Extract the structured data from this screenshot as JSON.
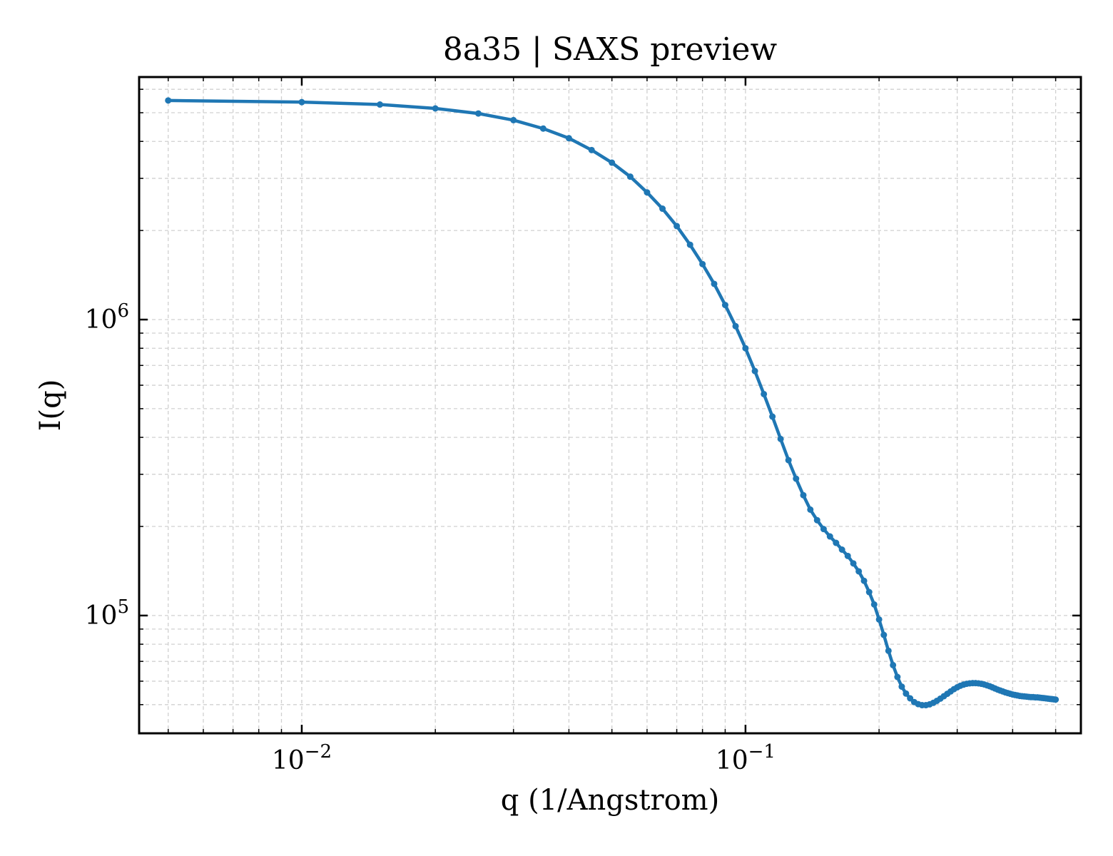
{
  "chart_data": {
    "type": "line",
    "title": "8a35 | SAXS preview",
    "xlabel": "q (1/Angstrom)",
    "ylabel": "I(q)",
    "xscale": "log",
    "yscale": "log",
    "xlim": [
      0.0043,
      0.57
    ],
    "ylim": [
      40000,
      6600000
    ],
    "grid": true,
    "legend": "none",
    "x_ticks": [
      {
        "value": 0.01,
        "base": "10",
        "exp": "−2"
      },
      {
        "value": 0.1,
        "base": "10",
        "exp": "−1"
      }
    ],
    "y_ticks": [
      {
        "value": 100000,
        "base": "10",
        "exp": "5"
      },
      {
        "value": 1000000,
        "base": "10",
        "exp": "6"
      }
    ],
    "series": [
      {
        "color": "#1f77b4",
        "marker": "circle",
        "x": [
          0.005,
          0.01,
          0.015,
          0.02,
          0.025,
          0.03,
          0.035,
          0.04,
          0.045,
          0.05,
          0.055,
          0.06,
          0.065,
          0.07,
          0.075,
          0.08,
          0.085,
          0.09,
          0.095,
          0.1,
          0.105,
          0.11,
          0.115,
          0.12,
          0.125,
          0.13,
          0.135,
          0.14,
          0.145,
          0.15,
          0.155,
          0.16,
          0.165,
          0.17,
          0.175,
          0.18,
          0.185,
          0.19,
          0.195,
          0.2,
          0.205,
          0.21,
          0.215,
          0.22,
          0.225,
          0.23,
          0.235,
          0.24,
          0.245,
          0.25,
          0.255,
          0.26,
          0.265,
          0.27,
          0.275,
          0.28,
          0.285,
          0.29,
          0.295,
          0.3,
          0.305,
          0.31,
          0.315,
          0.32,
          0.325,
          0.33,
          0.335,
          0.34,
          0.345,
          0.35,
          0.355,
          0.36,
          0.365,
          0.37,
          0.375,
          0.38,
          0.385,
          0.39,
          0.395,
          0.4,
          0.405,
          0.41,
          0.415,
          0.42,
          0.425,
          0.43,
          0.435,
          0.44,
          0.445,
          0.45,
          0.455,
          0.46,
          0.465,
          0.47,
          0.475,
          0.48,
          0.485,
          0.49,
          0.495,
          0.5
        ],
        "y": [
          5500000,
          5430000,
          5330000,
          5170000,
          4970000,
          4720000,
          4420000,
          4100000,
          3740000,
          3390000,
          3040000,
          2690000,
          2370000,
          2070000,
          1790000,
          1540000,
          1320000,
          1120000,
          950000,
          800000,
          670000,
          560000,
          470000,
          395000,
          335000,
          290000,
          255000,
          228000,
          210000,
          196000,
          185000,
          176000,
          167000,
          159000,
          150000,
          141000,
          131000,
          120000,
          109000,
          97000,
          86000,
          76000,
          68000,
          62000,
          57500,
          54500,
          52500,
          51000,
          50200,
          49800,
          49800,
          50100,
          50700,
          51500,
          52400,
          53400,
          54400,
          55400,
          56400,
          57200,
          57900,
          58400,
          58800,
          59000,
          59100,
          59100,
          59000,
          58800,
          58500,
          58100,
          57700,
          57200,
          56700,
          56200,
          55800,
          55400,
          55000,
          54700,
          54400,
          54100,
          53900,
          53700,
          53500,
          53400,
          53300,
          53200,
          53100,
          53000,
          53000,
          52900,
          52900,
          52800,
          52700,
          52600,
          52500,
          52400,
          52300,
          52200,
          52100,
          52000
        ]
      }
    ]
  }
}
